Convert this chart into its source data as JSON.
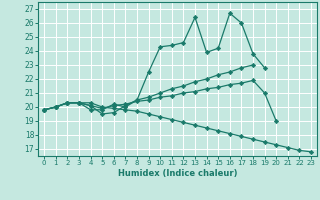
{
  "xlabel": "Humidex (Indice chaleur)",
  "bg_color": "#c5e8e0",
  "grid_color": "#ffffff",
  "line_color": "#1a7a6a",
  "xlim": [
    -0.5,
    23.5
  ],
  "ylim": [
    16.5,
    27.5
  ],
  "yticks": [
    17,
    18,
    19,
    20,
    21,
    22,
    23,
    24,
    25,
    26,
    27
  ],
  "xticks": [
    0,
    1,
    2,
    3,
    4,
    5,
    6,
    7,
    8,
    9,
    10,
    11,
    12,
    13,
    14,
    15,
    16,
    17,
    18,
    19,
    20,
    21,
    22,
    23
  ],
  "lines": [
    {
      "x": [
        0,
        1,
        2,
        3,
        4,
        5,
        6,
        7,
        8,
        9,
        10,
        11,
        12,
        13,
        14,
        15,
        16,
        17,
        18,
        19
      ],
      "y": [
        19.8,
        20.0,
        20.3,
        20.3,
        20.1,
        19.5,
        19.6,
        20.1,
        20.5,
        22.5,
        24.3,
        24.4,
        24.6,
        26.4,
        23.9,
        24.2,
        26.7,
        26.0,
        23.8,
        22.8
      ]
    },
    {
      "x": [
        0,
        1,
        2,
        3,
        4,
        5,
        6,
        7,
        8,
        9,
        10,
        11,
        12,
        13,
        14,
        15,
        16,
        17,
        18
      ],
      "y": [
        19.8,
        20.0,
        20.3,
        20.3,
        19.8,
        19.8,
        20.2,
        20.0,
        20.5,
        20.7,
        21.0,
        21.3,
        21.5,
        21.8,
        22.0,
        22.3,
        22.5,
        22.8,
        23.0
      ]
    },
    {
      "x": [
        0,
        1,
        2,
        3,
        4,
        5,
        6,
        7,
        8,
        9,
        10,
        11,
        12,
        13,
        14,
        15,
        16,
        17,
        18,
        19,
        20
      ],
      "y": [
        19.8,
        20.0,
        20.3,
        20.3,
        20.1,
        19.9,
        20.1,
        20.2,
        20.4,
        20.5,
        20.7,
        20.8,
        21.0,
        21.1,
        21.3,
        21.4,
        21.6,
        21.7,
        21.9,
        21.0,
        19.0
      ]
    },
    {
      "x": [
        0,
        1,
        2,
        3,
        4,
        5,
        6,
        7,
        8,
        9,
        10,
        11,
        12,
        13,
        14,
        15,
        16,
        17,
        18,
        19,
        20,
        21,
        22,
        23
      ],
      "y": [
        19.8,
        20.0,
        20.3,
        20.3,
        20.3,
        20.0,
        19.9,
        19.8,
        19.7,
        19.5,
        19.3,
        19.1,
        18.9,
        18.7,
        18.5,
        18.3,
        18.1,
        17.9,
        17.7,
        17.5,
        17.3,
        17.1,
        16.9,
        16.8
      ]
    }
  ]
}
